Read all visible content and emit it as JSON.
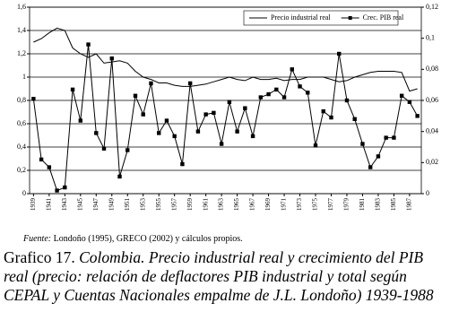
{
  "chart_data": {
    "type": "line",
    "x": [
      1939,
      1940,
      1941,
      1942,
      1943,
      1944,
      1945,
      1946,
      1947,
      1948,
      1949,
      1950,
      1951,
      1952,
      1953,
      1954,
      1955,
      1956,
      1957,
      1958,
      1959,
      1960,
      1961,
      1962,
      1963,
      1964,
      1965,
      1966,
      1967,
      1968,
      1969,
      1970,
      1971,
      1972,
      1973,
      1974,
      1975,
      1976,
      1977,
      1978,
      1979,
      1980,
      1981,
      1982,
      1983,
      1984,
      1985,
      1986,
      1987,
      1988
    ],
    "xlim": [
      1938.5,
      1988.5
    ],
    "xticks": [
      1939,
      1941,
      1943,
      1945,
      1947,
      1949,
      1951,
      1953,
      1955,
      1957,
      1959,
      1961,
      1963,
      1965,
      1967,
      1969,
      1971,
      1973,
      1975,
      1977,
      1979,
      1981,
      1983,
      1985,
      1987
    ],
    "ylim": [
      0,
      1.6
    ],
    "yticks": [
      0,
      {
        "value": 0.2,
        "label": "0,2"
      },
      {
        "value": 0.4,
        "label": "0,4"
      },
      {
        "value": 0.6,
        "label": "0,6"
      },
      {
        "value": 0.8,
        "label": "0,8"
      },
      1,
      {
        "value": 1.2,
        "label": "1,2"
      },
      {
        "value": 1.4,
        "label": "1,4"
      },
      {
        "value": 1.6,
        "label": "1,6"
      }
    ],
    "y2lim": [
      0,
      0.12
    ],
    "y2ticks": [
      0,
      {
        "value": 0.02,
        "label": "0,02"
      },
      {
        "value": 0.04,
        "label": "0,04"
      },
      {
        "value": 0.06,
        "label": "0,06"
      },
      {
        "value": 0.08,
        "label": "0,08"
      },
      {
        "value": 0.1,
        "label": "0,1"
      },
      {
        "value": 0.12,
        "label": "0,12"
      }
    ],
    "grid": true,
    "legend": "top-right",
    "series": [
      {
        "name": "Precio industrial real",
        "color": "#000000",
        "marker": "none",
        "values": [
          1.3,
          1.33,
          1.38,
          1.42,
          1.4,
          1.25,
          1.2,
          1.17,
          1.2,
          1.12,
          1.13,
          1.14,
          1.12,
          1.05,
          1.0,
          0.98,
          0.95,
          0.95,
          0.93,
          0.92,
          0.92,
          0.93,
          0.94,
          0.96,
          0.98,
          1.0,
          0.98,
          0.97,
          1.0,
          0.98,
          0.98,
          0.99,
          0.97,
          0.98,
          0.98,
          1.0,
          1.0,
          1.0,
          0.98,
          0.96,
          0.97,
          1.0,
          1.02,
          1.04,
          1.05,
          1.05,
          1.05,
          1.04,
          0.88,
          0.9
        ]
      },
      {
        "name": "Crec. PIB real",
        "color": "#000000",
        "marker": "square",
        "axis": "y2",
        "values": [
          0.061,
          0.022,
          0.017,
          0.002,
          0.004,
          0.067,
          0.047,
          0.096,
          0.039,
          0.029,
          0.087,
          0.011,
          0.028,
          0.063,
          0.051,
          0.071,
          0.039,
          0.047,
          0.037,
          0.019,
          0.071,
          0.04,
          0.051,
          0.052,
          0.032,
          0.059,
          0.04,
          0.055,
          0.037,
          0.062,
          0.064,
          0.067,
          0.062,
          0.08,
          0.069,
          0.065,
          0.031,
          0.053,
          0.049,
          0.09,
          0.06,
          0.048,
          0.032,
          0.017,
          0.024,
          0.036,
          0.036,
          0.063,
          0.059,
          0.05
        ]
      }
    ],
    "source_label": "Fuente:",
    "source": "Londoño (1995), GRECO (2002) y cálculos propios.",
    "caption_label": "Grafico 17.",
    "caption": "Colombia. Precio industrial real y crecimiento del PIB real (precio: relación de deflactores PIB industrial y total según CEPAL y Cuentas Nacionales empalme de J.L. Londoño) 1939-1988"
  }
}
